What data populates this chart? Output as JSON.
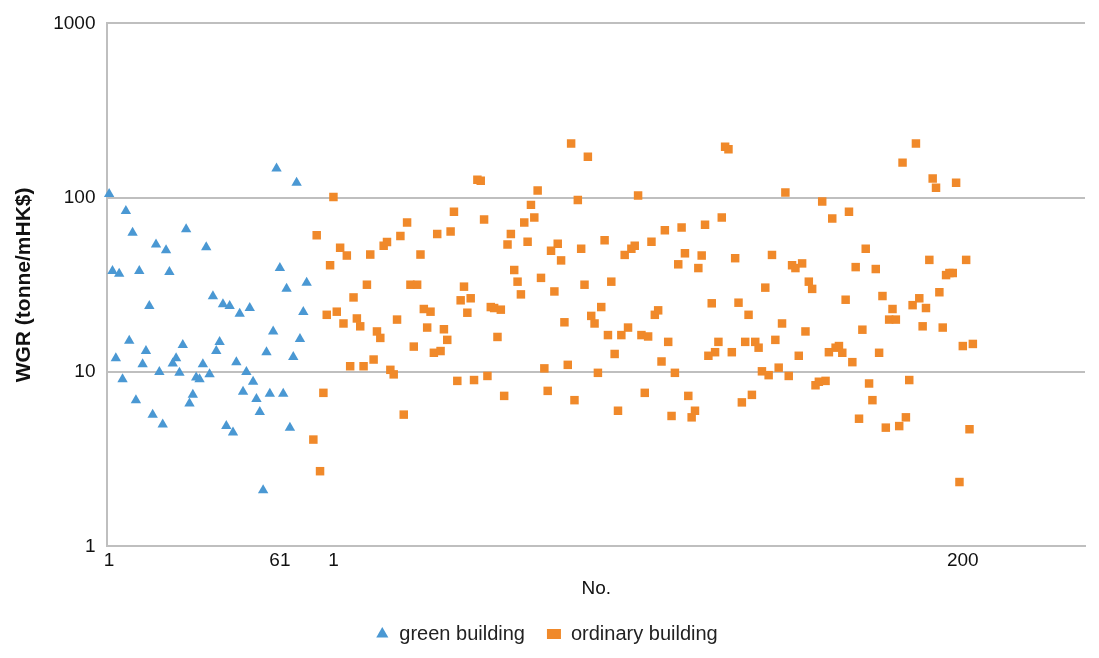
{
  "chart_data": {
    "type": "scatter",
    "xlabel": "No.",
    "ylabel": "WGR (tonne/mHK$)",
    "log": "y",
    "grid": "y",
    "legend": "bottom",
    "ylim": [
      1,
      1000
    ],
    "yticks": [
      1,
      10,
      100,
      1000
    ],
    "categories": [
      "1",
      null,
      null,
      null,
      null,
      null,
      null,
      null,
      null,
      null,
      null,
      null,
      null,
      null,
      null,
      null,
      null,
      null,
      null,
      null,
      null,
      null,
      null,
      null,
      null,
      null,
      null,
      null,
      null,
      null,
      null,
      null,
      null,
      null,
      null,
      null,
      null,
      null,
      null,
      null,
      null,
      null,
      null,
      null,
      null,
      null,
      null,
      null,
      null,
      null,
      null,
      "61",
      null,
      null,
      null,
      null,
      null,
      null,
      null,
      null,
      null,
      null,
      null,
      null,
      null,
      null,
      null,
      "1",
      null,
      null,
      null,
      null,
      null,
      null,
      null,
      null,
      null,
      null,
      null,
      null,
      null,
      null,
      null,
      null,
      null,
      null,
      null,
      null,
      null,
      null,
      null,
      null,
      null,
      null,
      null,
      null,
      null,
      null,
      null,
      null,
      null,
      null,
      null,
      null,
      null,
      null,
      null,
      null,
      null,
      null,
      null,
      null,
      null,
      null,
      null,
      null,
      null,
      null,
      null,
      null,
      null,
      null,
      null,
      null,
      null,
      null,
      null,
      null,
      null,
      null,
      null,
      null,
      null,
      null,
      null,
      null,
      null,
      null,
      null,
      null,
      null,
      null,
      null,
      null,
      null,
      null,
      null,
      null,
      null,
      null,
      null,
      null,
      null,
      null,
      null,
      null,
      null,
      null,
      null,
      null,
      null,
      null,
      null,
      null,
      null,
      null,
      null,
      null,
      null,
      null,
      null,
      null,
      null,
      null,
      null,
      null,
      null,
      null,
      null,
      null,
      null,
      null,
      null,
      null,
      null,
      null,
      null,
      null,
      null,
      null,
      null,
      null,
      null,
      null,
      null,
      null,
      null,
      null,
      null,
      null,
      null,
      null,
      null,
      null,
      null,
      null,
      null,
      null,
      null,
      null,
      null,
      null,
      null,
      null,
      null,
      null,
      null,
      null,
      null,
      null,
      null,
      null,
      null,
      null,
      null,
      null,
      null,
      null,
      null,
      null,
      null,
      null,
      null,
      null,
      null,
      null,
      null,
      null,
      null,
      null,
      null,
      null,
      null,
      null,
      null,
      null,
      null,
      null,
      null,
      null,
      null,
      null,
      null,
      null,
      null,
      "200",
      null,
      null,
      null,
      null,
      null,
      null,
      null,
      null,
      null,
      null,
      null,
      null,
      null,
      null,
      null,
      null,
      null,
      null,
      null,
      null,
      null,
      null,
      null,
      null,
      null,
      null,
      null,
      null,
      null,
      null,
      null,
      null,
      null,
      null,
      null,
      null
    ],
    "series": [
      {
        "name": "green building",
        "color": "#4a98d3",
        "marker": "triangle",
        "values": [
          105,
          38,
          12.0,
          36.6,
          9.1,
          84,
          15.1,
          63,
          6.9,
          38,
          11.1,
          13.2,
          23.9,
          5.7,
          54,
          10,
          5.0,
          50,
          37.5,
          11.2,
          12.0,
          9.9,
          14.3,
          66,
          6.6,
          7.4,
          9.3,
          9.1,
          11.1,
          52,
          9.7,
          27.2,
          13.2,
          14.9,
          24.5,
          4.9,
          23.9,
          4.5,
          11.4,
          21.6,
          7.7,
          10,
          23.3,
          8.8,
          7.0,
          5.9,
          2.1,
          13.0,
          7.5,
          17.1,
          147,
          39.5,
          7.5,
          30.1,
          4.8,
          12.2,
          122,
          15.5,
          22.1,
          32.5,
          null,
          null,
          null,
          null,
          null,
          null,
          null,
          null,
          null,
          null,
          null,
          null,
          null,
          null,
          null,
          null,
          null,
          null,
          null,
          null,
          null,
          null,
          null,
          null,
          null,
          null,
          null,
          null,
          null,
          null,
          null,
          null,
          null,
          null,
          null,
          null,
          null,
          null,
          null,
          null,
          null,
          null,
          null,
          null,
          null,
          null,
          null,
          null,
          null,
          null,
          null,
          null,
          null,
          null,
          null,
          null,
          null,
          null,
          null,
          null,
          null,
          null,
          null,
          null,
          null,
          null,
          null,
          null,
          null,
          null,
          null,
          null,
          null,
          null,
          null,
          null,
          null,
          null,
          null,
          null,
          null,
          null,
          null,
          null,
          null,
          null,
          null,
          null,
          null,
          null,
          null,
          null,
          null,
          null,
          null,
          null,
          null,
          null,
          null,
          null,
          null,
          null,
          null,
          null,
          null,
          null,
          null,
          null,
          null,
          null,
          null,
          null,
          null,
          null,
          null,
          null,
          null,
          null,
          null,
          null,
          null,
          null,
          null,
          null,
          null,
          null,
          null,
          null,
          null,
          null,
          null,
          null,
          null,
          null,
          null,
          null,
          null,
          null,
          null,
          null,
          null,
          null,
          null,
          null,
          null,
          null,
          null,
          null,
          null,
          null,
          null,
          null,
          null,
          null,
          null,
          null,
          null,
          null,
          null,
          null,
          null,
          null,
          null,
          null,
          null,
          null,
          null,
          null,
          null,
          null,
          null,
          null,
          null,
          null,
          null,
          null,
          null,
          null,
          null,
          null,
          null,
          null,
          null,
          null,
          null,
          null,
          null,
          null,
          null,
          null,
          null,
          null,
          null,
          null,
          null,
          null,
          null,
          null,
          null,
          null,
          null,
          null,
          null,
          null,
          null,
          null,
          null,
          null,
          null,
          null,
          null,
          null,
          null,
          null,
          null,
          null,
          null,
          null,
          null,
          null,
          null,
          null,
          null,
          null,
          null,
          null,
          null,
          null,
          null,
          null,
          null,
          null
        ]
      },
      {
        "name": "ordinary building",
        "color": "#f0892a",
        "marker": "square",
        "values": [
          null,
          null,
          null,
          null,
          null,
          null,
          null,
          null,
          null,
          null,
          null,
          null,
          null,
          null,
          null,
          null,
          null,
          null,
          null,
          null,
          null,
          null,
          null,
          null,
          null,
          null,
          null,
          null,
          null,
          null,
          null,
          null,
          null,
          null,
          null,
          null,
          null,
          null,
          null,
          null,
          null,
          null,
          null,
          null,
          null,
          null,
          null,
          null,
          null,
          null,
          null,
          null,
          null,
          null,
          null,
          null,
          null,
          null,
          null,
          null,
          null,
          4.1,
          61,
          2.7,
          7.6,
          21.3,
          41,
          101,
          22.2,
          51.7,
          19.0,
          46.6,
          10.8,
          26.8,
          20.3,
          18.3,
          10.8,
          31.7,
          47.2,
          11.8,
          17.1,
          15.7,
          53,
          55.8,
          10.3,
          9.7,
          20,
          60.3,
          5.7,
          72,
          31.7,
          14,
          31.7,
          47.2,
          23,
          18,
          22.2,
          12.9,
          62,
          13.2,
          17.6,
          15.3,
          64,
          83,
          8.9,
          25.8,
          30.9,
          21.9,
          26.5,
          9.0,
          127,
          125,
          75,
          9.5,
          23.6,
          23.3,
          15.9,
          22.8,
          7.3,
          54,
          62,
          38.5,
          33,
          27.9,
          72,
          56,
          91,
          77,
          110,
          34.7,
          10.5,
          7.8,
          49.7,
          29,
          54.5,
          43.7,
          19.3,
          11.0,
          205,
          6.9,
          97,
          51,
          31.7,
          172,
          21,
          19,
          9.9,
          23.6,
          57,
          16.3,
          33,
          12.7,
          6.0,
          16.3,
          47,
          18,
          51,
          53,
          103,
          16.3,
          7.6,
          16,
          56,
          21.3,
          22.6,
          11.5,
          65,
          14.9,
          5.6,
          9.9,
          41.5,
          67.5,
          48,
          7.3,
          5.5,
          6.0,
          39.5,
          46.6,
          70,
          12.4,
          24.8,
          13,
          14.9,
          77,
          196,
          190,
          13,
          45,
          25,
          6.7,
          14.9,
          21.3,
          7.4,
          14.9,
          13.8,
          10.1,
          30.5,
          9.6,
          47,
          15.3,
          10.6,
          19,
          107,
          9.5,
          41,
          39.5,
          12.4,
          42,
          17.1,
          33,
          30,
          8.4,
          8.8,
          95,
          8.9,
          13,
          76,
          13.8,
          14.1,
          12.9,
          26,
          83,
          11.4,
          40,
          5.4,
          17.5,
          51,
          8.6,
          6.9,
          39,
          12.9,
          27.3,
          4.8,
          20,
          23,
          20,
          4.9,
          159,
          5.5,
          9.0,
          24.2,
          205,
          26.5,
          18.3,
          23.3,
          44,
          129,
          114,
          28.7,
          18,
          36,
          37,
          37,
          122,
          2.34,
          14.1,
          44,
          4.7,
          14.5,
          null,
          null,
          null,
          null,
          null,
          null,
          null,
          null,
          null,
          null,
          null,
          null,
          null,
          null,
          null,
          null,
          null,
          null,
          null,
          null,
          null,
          null,
          null,
          null,
          null,
          null,
          null,
          null,
          null,
          null,
          null,
          null,
          null
        ]
      }
    ]
  }
}
